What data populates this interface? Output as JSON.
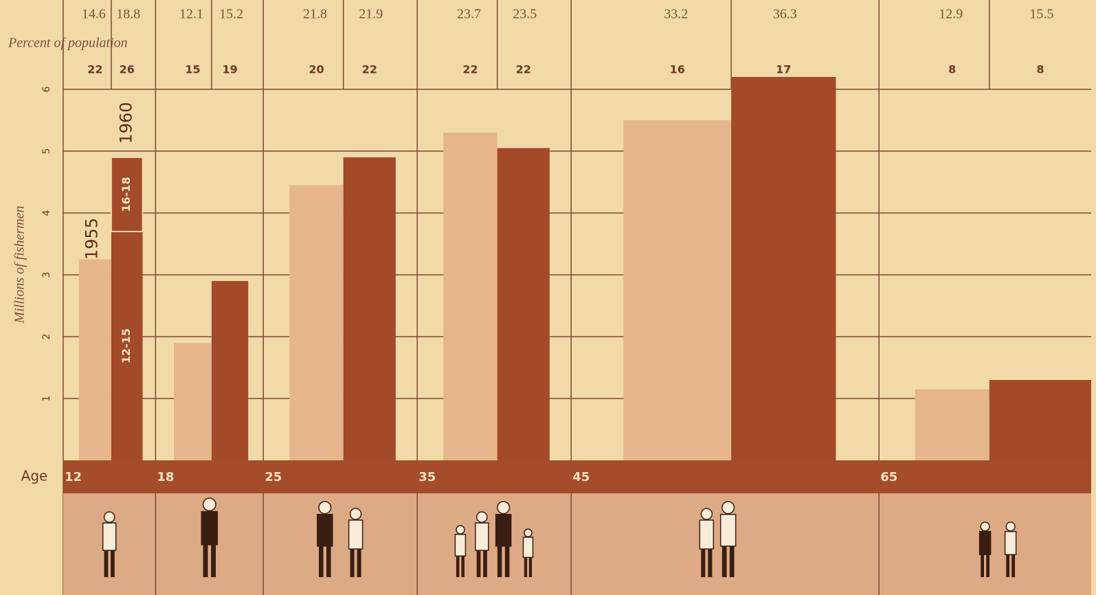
{
  "chart_data": {
    "type": "bar",
    "y_label": "Millions of fishermen",
    "top_label": "Percent of population",
    "x_label": "Age",
    "age_ticks": [
      12,
      18,
      25,
      35,
      45,
      65
    ],
    "ylim": [
      0,
      6
    ],
    "yticks": [
      1,
      2,
      3,
      4,
      5,
      6
    ],
    "grid": true,
    "series": [
      {
        "name": "1955",
        "color": "#e5b68c",
        "values": [
          3.25,
          1.9,
          4.45,
          5.3,
          5.5,
          1.15
        ],
        "row1": [
          14.6,
          12.1,
          21.8,
          23.7,
          33.2,
          12.9
        ],
        "row2": [
          22,
          15,
          20,
          22,
          16,
          8
        ]
      },
      {
        "name": "1960",
        "color": "#a24a2a",
        "values": [
          null,
          2.9,
          4.9,
          5.05,
          6.2,
          1.3
        ],
        "segments": [
          {
            "name": "12-15",
            "value": 3.7
          },
          {
            "name": "16-18",
            "value": 1.2
          }
        ],
        "row1": [
          18.8,
          15.2,
          21.9,
          23.5,
          36.3,
          15.5
        ],
        "row2": [
          26,
          19,
          22,
          22,
          17,
          8
        ]
      }
    ]
  }
}
